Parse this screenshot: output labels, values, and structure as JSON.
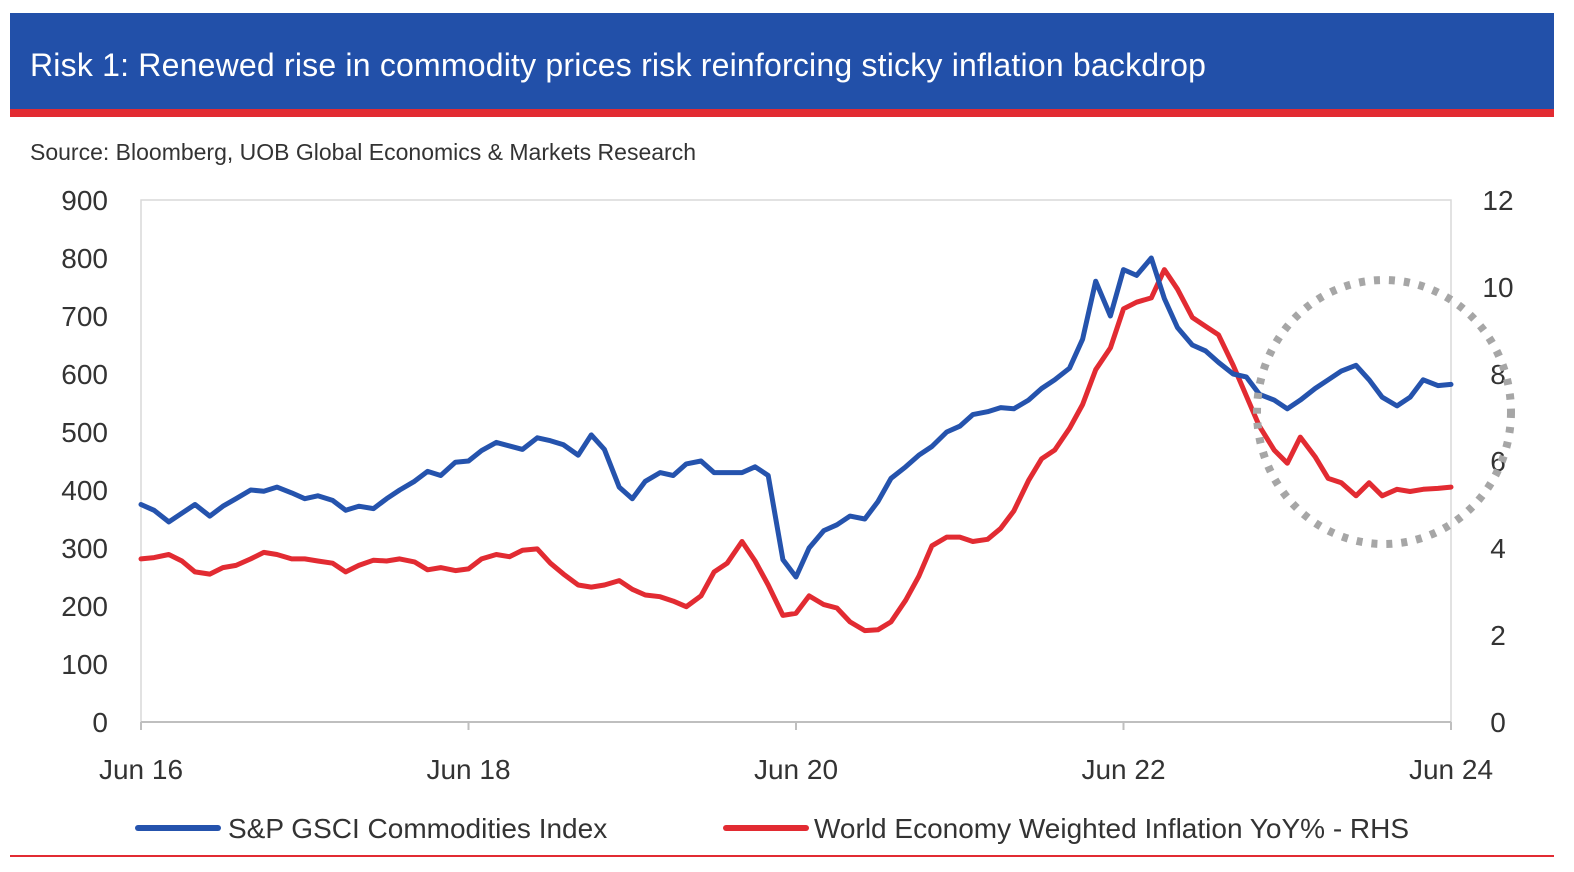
{
  "header": {
    "title": "Risk 1: Renewed rise in commodity prices risk reinforcing sticky inflation backdrop",
    "source": "Source: Bloomberg, UOB Global Economics & Markets Research"
  },
  "colors": {
    "header_bg": "#2250a9",
    "accent_red": "#e22b32",
    "series_blue": "#2553ad",
    "series_red": "#e22b32",
    "highlight": "#a6a6a6"
  },
  "chart_data": {
    "type": "line",
    "title": "Risk 1: Renewed rise in commodity prices risk reinforcing sticky inflation backdrop",
    "x_tick_labels": [
      "Jun 16",
      "Jun 18",
      "Jun 20",
      "Jun 22",
      "Jun 24"
    ],
    "x_tick_values": [
      2016.5,
      2018.5,
      2020.5,
      2022.5,
      2024.5
    ],
    "xlim": [
      2016.5,
      2024.5
    ],
    "y_left": {
      "ylim": [
        0,
        900
      ],
      "ticks": [
        0,
        100,
        200,
        300,
        400,
        500,
        600,
        700,
        800,
        900
      ]
    },
    "y_right": {
      "ylim": [
        0,
        12
      ],
      "ticks": [
        0,
        2,
        4,
        6,
        8,
        10,
        12
      ]
    },
    "grid": false,
    "legend_position": "bottom",
    "series": [
      {
        "name": "S&P GSCI Commodities Index",
        "axis": "left",
        "x": [
          2016.5,
          2016.58,
          2016.67,
          2016.75,
          2016.83,
          2016.92,
          2017.0,
          2017.08,
          2017.17,
          2017.25,
          2017.33,
          2017.42,
          2017.5,
          2017.58,
          2017.67,
          2017.75,
          2017.83,
          2017.92,
          2018.0,
          2018.08,
          2018.17,
          2018.25,
          2018.33,
          2018.42,
          2018.5,
          2018.58,
          2018.67,
          2018.75,
          2018.83,
          2018.92,
          2019.0,
          2019.08,
          2019.17,
          2019.25,
          2019.33,
          2019.42,
          2019.5,
          2019.58,
          2019.67,
          2019.75,
          2019.83,
          2019.92,
          2020.0,
          2020.08,
          2020.17,
          2020.25,
          2020.33,
          2020.42,
          2020.5,
          2020.58,
          2020.67,
          2020.75,
          2020.83,
          2020.92,
          2021.0,
          2021.08,
          2021.17,
          2021.25,
          2021.33,
          2021.42,
          2021.5,
          2021.58,
          2021.67,
          2021.75,
          2021.83,
          2021.92,
          2022.0,
          2022.08,
          2022.17,
          2022.25,
          2022.33,
          2022.42,
          2022.5,
          2022.58,
          2022.67,
          2022.75,
          2022.83,
          2022.92,
          2023.0,
          2023.08,
          2023.17,
          2023.25,
          2023.33,
          2023.42,
          2023.5,
          2023.58,
          2023.67,
          2023.75,
          2023.83,
          2023.92,
          2024.0,
          2024.08,
          2024.17,
          2024.25,
          2024.33,
          2024.42,
          2024.5
        ],
        "y": [
          375,
          365,
          345,
          360,
          375,
          355,
          372,
          385,
          400,
          398,
          405,
          395,
          385,
          390,
          382,
          365,
          372,
          368,
          385,
          400,
          415,
          432,
          425,
          448,
          450,
          468,
          482,
          476,
          470,
          490,
          485,
          478,
          460,
          495,
          470,
          405,
          385,
          415,
          430,
          425,
          445,
          450,
          430,
          430,
          430,
          440,
          425,
          280,
          250,
          300,
          330,
          340,
          355,
          350,
          380,
          420,
          440,
          460,
          475,
          500,
          510,
          530,
          535,
          542,
          540,
          555,
          575,
          590,
          610,
          660,
          760,
          700,
          780,
          770,
          800,
          730,
          680,
          650,
          640,
          620,
          600,
          595,
          565,
          555,
          540,
          555,
          575,
          590,
          605,
          615,
          590,
          560,
          545,
          560,
          590,
          580,
          582
        ]
      },
      {
        "name": "World Economy Weighted Inflation YoY% - RHS",
        "axis": "right",
        "x": [
          2016.5,
          2016.58,
          2016.67,
          2016.75,
          2016.83,
          2016.92,
          2017.0,
          2017.08,
          2017.17,
          2017.25,
          2017.33,
          2017.42,
          2017.5,
          2017.58,
          2017.67,
          2017.75,
          2017.83,
          2017.92,
          2018.0,
          2018.08,
          2018.17,
          2018.25,
          2018.33,
          2018.42,
          2018.5,
          2018.58,
          2018.67,
          2018.75,
          2018.83,
          2018.92,
          2019.0,
          2019.08,
          2019.17,
          2019.25,
          2019.33,
          2019.42,
          2019.5,
          2019.58,
          2019.67,
          2019.75,
          2019.83,
          2019.92,
          2020.0,
          2020.08,
          2020.17,
          2020.25,
          2020.33,
          2020.42,
          2020.5,
          2020.58,
          2020.67,
          2020.75,
          2020.83,
          2020.92,
          2021.0,
          2021.08,
          2021.17,
          2021.25,
          2021.33,
          2021.42,
          2021.5,
          2021.58,
          2021.67,
          2021.75,
          2021.83,
          2021.92,
          2022.0,
          2022.08,
          2022.17,
          2022.25,
          2022.33,
          2022.42,
          2022.5,
          2022.58,
          2022.67,
          2022.75,
          2022.83,
          2022.92,
          2023.0,
          2023.08,
          2023.17,
          2023.25,
          2023.33,
          2023.42,
          2023.5,
          2023.58,
          2023.67,
          2023.75,
          2023.83,
          2023.92,
          2024.0,
          2024.08,
          2024.17,
          2024.25,
          2024.33,
          2024.42,
          2024.5
        ],
        "y": [
          3.75,
          3.78,
          3.85,
          3.7,
          3.45,
          3.4,
          3.55,
          3.6,
          3.75,
          3.9,
          3.85,
          3.75,
          3.75,
          3.7,
          3.65,
          3.45,
          3.6,
          3.72,
          3.7,
          3.75,
          3.68,
          3.5,
          3.55,
          3.48,
          3.52,
          3.75,
          3.85,
          3.8,
          3.95,
          3.98,
          3.65,
          3.4,
          3.15,
          3.1,
          3.15,
          3.25,
          3.05,
          2.92,
          2.88,
          2.78,
          2.65,
          2.9,
          3.45,
          3.65,
          4.15,
          3.7,
          3.15,
          2.45,
          2.5,
          2.9,
          2.7,
          2.62,
          2.3,
          2.1,
          2.12,
          2.3,
          2.8,
          3.35,
          4.05,
          4.25,
          4.25,
          4.15,
          4.2,
          4.45,
          4.85,
          5.55,
          6.05,
          6.25,
          6.75,
          7.3,
          8.1,
          8.6,
          9.5,
          9.65,
          9.75,
          10.4,
          9.95,
          9.3,
          9.1,
          8.9,
          8.2,
          7.5,
          6.8,
          6.25,
          5.95,
          6.55,
          6.1,
          5.6,
          5.5,
          5.2,
          5.5,
          5.2,
          5.35,
          5.3,
          5.35,
          5.37,
          5.4
        ]
      }
    ]
  },
  "legend": [
    {
      "label": "S&P GSCI Commodities Index",
      "color": "#2553ad"
    },
    {
      "label": "World Economy Weighted Inflation YoY% - RHS",
      "color": "#e22b32"
    }
  ]
}
